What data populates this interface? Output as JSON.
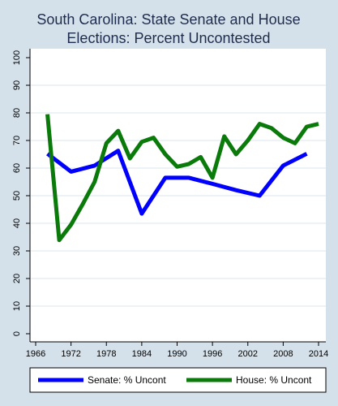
{
  "chart_data": {
    "type": "line",
    "title": "South Carolina: State Senate and House\nElections: Percent Uncontested",
    "title_lines": [
      "South Carolina: State Senate and House",
      "Elections: Percent Uncontested"
    ],
    "xlabel": "",
    "ylabel": "",
    "xlim": [
      1965,
      2015
    ],
    "ylim": [
      0,
      100
    ],
    "x_ticks": [
      1966,
      1972,
      1978,
      1984,
      1990,
      1996,
      2002,
      2008,
      2014
    ],
    "y_ticks": [
      0,
      10,
      20,
      30,
      40,
      50,
      60,
      70,
      80,
      90,
      100
    ],
    "grid": true,
    "legend_position": "bottom",
    "series": [
      {
        "name": "Senate: % Uncont",
        "color": "#0000ff",
        "points": [
          [
            1968,
            65.2
          ],
          [
            1972,
            58.7
          ],
          [
            1976,
            60.9
          ],
          [
            1980,
            66.3
          ],
          [
            1984,
            43.5
          ],
          [
            1988,
            56.5
          ],
          [
            1992,
            56.5
          ],
          [
            1996,
            54.3
          ],
          [
            2000,
            52.0
          ],
          [
            2004,
            50.0
          ],
          [
            2008,
            60.9
          ],
          [
            2012,
            65.2
          ]
        ]
      },
      {
        "name": "House: % Uncont",
        "color": "#0a7a0a",
        "points": [
          [
            1968,
            79.5
          ],
          [
            1970,
            33.9
          ],
          [
            1972,
            39.5
          ],
          [
            1974,
            47.0
          ],
          [
            1976,
            55.0
          ],
          [
            1978,
            69.0
          ],
          [
            1980,
            73.5
          ],
          [
            1982,
            63.5
          ],
          [
            1984,
            69.5
          ],
          [
            1986,
            71.0
          ],
          [
            1988,
            65.0
          ],
          [
            1990,
            60.5
          ],
          [
            1992,
            61.5
          ],
          [
            1994,
            64.0
          ],
          [
            1996,
            56.5
          ],
          [
            1998,
            71.5
          ],
          [
            2000,
            65.0
          ],
          [
            2002,
            70.0
          ],
          [
            2004,
            76.0
          ],
          [
            2006,
            74.5
          ],
          [
            2008,
            71.0
          ],
          [
            2010,
            69.0
          ],
          [
            2012,
            75.0
          ],
          [
            2014,
            76.0
          ]
        ]
      }
    ]
  },
  "colors": {
    "page_background": "#d5e1ea",
    "plot_background": "#ffffff",
    "grid": "#d9e4ec",
    "title": "#1e2c4e"
  }
}
